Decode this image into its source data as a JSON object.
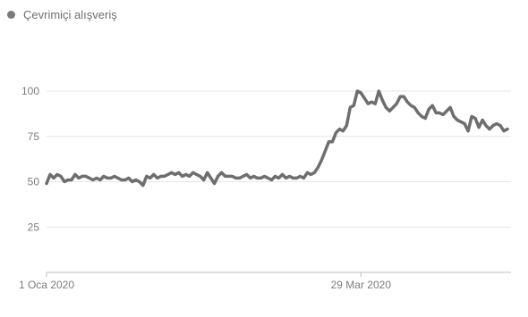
{
  "chart_data": {
    "type": "line",
    "series": [
      {
        "name": "Çevrimiçi alışveriş",
        "color": "#6e6e6e",
        "values": [
          49,
          54,
          52,
          54,
          53,
          50,
          51,
          51,
          54,
          52,
          53,
          53,
          52,
          51,
          52,
          51,
          53,
          52,
          52,
          53,
          52,
          51,
          51,
          52,
          50,
          51,
          50,
          48,
          53,
          52,
          54,
          52,
          53,
          53,
          54,
          55,
          54,
          55,
          53,
          54,
          53,
          55,
          54,
          53,
          51,
          55,
          52,
          49,
          53,
          55,
          53,
          53,
          53,
          52,
          52,
          53,
          54,
          52,
          53,
          52,
          52,
          53,
          52,
          51,
          53,
          52,
          54,
          52,
          53,
          52,
          52,
          53,
          52,
          55,
          54,
          55,
          58,
          62,
          67,
          72,
          72,
          77,
          79,
          78,
          81,
          91,
          92,
          100,
          99,
          96,
          93,
          94,
          93,
          100,
          95,
          91,
          89,
          91,
          93,
          97,
          97,
          94,
          92,
          91,
          88,
          86,
          85,
          90,
          92,
          88,
          88,
          87,
          89,
          91,
          86,
          84,
          83,
          82,
          78,
          86,
          85,
          80,
          84,
          81,
          79,
          81,
          82,
          81,
          78,
          79
        ]
      }
    ],
    "legend": {
      "position": "top-left",
      "label": "Çevrimiçi alışveriş",
      "dot_color": "#7a7a7a"
    },
    "x_tick_labels": [
      "1 Oca 2020",
      "29 Mar 2020"
    ],
    "x_tick_indices": [
      0,
      88
    ],
    "y_ticks": [
      25,
      50,
      75,
      100
    ],
    "y_tick_labels": [
      "25",
      "50",
      "75",
      "100"
    ],
    "ylim": [
      0,
      100
    ],
    "grid": true,
    "gridline_color": "#e6e6e6",
    "axis_color": "#bdbdbd"
  }
}
